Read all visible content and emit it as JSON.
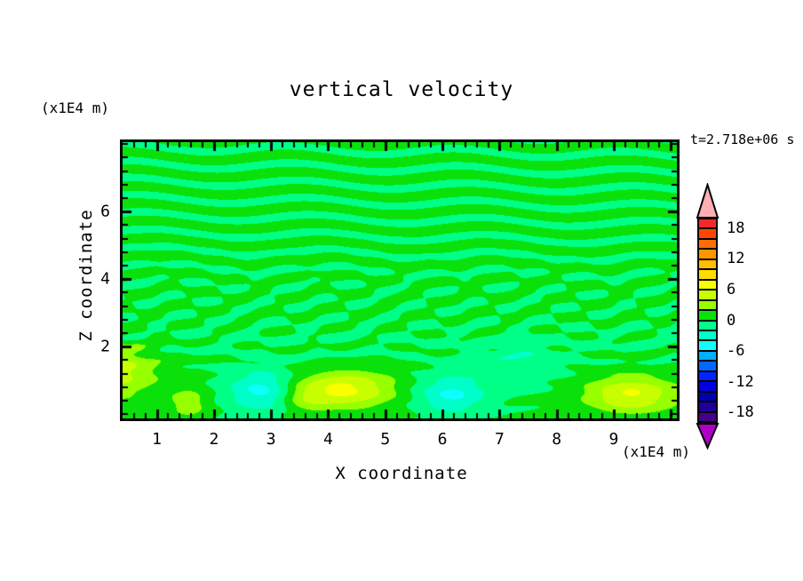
{
  "title": "vertical velocity",
  "time_stamp": "t=2.718e+06 s",
  "x_axis": {
    "title": "X coordinate",
    "unit": "(x1E4 m)",
    "major_tick_labels": [
      "1",
      "2",
      "3",
      "4",
      "5",
      "6",
      "7",
      "8",
      "9"
    ],
    "major_tick_values": [
      1,
      2,
      3,
      4,
      5,
      6,
      7,
      8,
      9
    ],
    "minor_step": 0.2,
    "range": [
      0.4,
      10.1
    ]
  },
  "y_axis": {
    "title": "Z coordinate",
    "unit": "(x1E4 m)",
    "major_tick_labels": [
      "6",
      "4",
      "2"
    ],
    "major_tick_values": [
      6,
      4,
      2
    ],
    "minor_step": 0.4,
    "range": [
      -0.23,
      8.06
    ]
  },
  "colorbar": {
    "labels": [
      "18",
      "12",
      "6",
      "0",
      "-6",
      "-12",
      "-18"
    ],
    "label_values": [
      18,
      12,
      6,
      0,
      -6,
      -12,
      -18
    ],
    "level_min": -20,
    "level_max": 20,
    "level_step": 2,
    "colors_bottom_to_top": [
      "#46008C",
      "#1E0096",
      "#0000AF",
      "#0000E1",
      "#0023FF",
      "#0069FF",
      "#00AFFF",
      "#0FFFFF",
      "#00FFC8",
      "#00FF87",
      "#0AE10A",
      "#96FF00",
      "#C8FF00",
      "#FAFF00",
      "#FFDC00",
      "#FFBE00",
      "#FF9600",
      "#FF6E00",
      "#FF4600",
      "#F52828"
    ],
    "over_color": "#FFAFB4",
    "under_color": "#AF00C8"
  },
  "chart_data": {
    "type": "heatmap",
    "title": "vertical velocity",
    "xlabel": "X coordinate (x1E4 m)",
    "ylabel": "Z coordinate (x1E4 m)",
    "annotation": "t=2.718e+06 s",
    "xlim": [
      0.4,
      10.1
    ],
    "ylim": [
      -0.23,
      8.06
    ],
    "contour_levels_step": 2,
    "value_range_shown": [
      -6,
      8
    ],
    "dominant_colors": {
      "positive_0_2": "#0AE10A",
      "negative_0_2": "#00FF87"
    },
    "field_model": {
      "stripe_wave": {
        "amp": 0.92,
        "kz": 12.4,
        "wiggle_amp": 1.35,
        "wiggle_kx": 2.15,
        "wiggle_kz": 0.5,
        "kx": 0.35,
        "phase": 0.4
      },
      "mid_band": {
        "center": 3.1,
        "width": 1.35,
        "stripe_reduction": 0.5
      },
      "diag_wave": {
        "amp": 0.9,
        "kx": 6.8,
        "kz": -8.5,
        "phase": 1.5
      },
      "diag_wave2": {
        "amp": 0.45,
        "kx": 5.2,
        "kz": 11.5,
        "phase": 0.8
      },
      "surface_band": {
        "amp": -0.38,
        "center": 2.15,
        "width": 0.55,
        "offset": 0.18
      },
      "bottom_damp": {
        "center": 1.55,
        "scale": 0.22,
        "floor": 0.25
      },
      "blobs": [
        {
          "x": 0.25,
          "z": 1.3,
          "sx": 0.75,
          "sz": 0.8,
          "amp": 4.8
        },
        {
          "x": 1.55,
          "z": 0.35,
          "sx": 0.35,
          "sz": 0.45,
          "amp": 3.0
        },
        {
          "x": 3.55,
          "z": 0.5,
          "sx": 0.45,
          "sz": 0.45,
          "amp": 2.6
        },
        {
          "x": 4.3,
          "z": 0.75,
          "sx": 0.85,
          "sz": 0.55,
          "amp": 6.3
        },
        {
          "x": 9.3,
          "z": 0.6,
          "sx": 0.8,
          "sz": 0.55,
          "amp": 6.0
        },
        {
          "x": 2.85,
          "z": 0.7,
          "sx": 0.6,
          "sz": 0.6,
          "amp": -5.0
        },
        {
          "x": 6.15,
          "z": 0.6,
          "sx": 0.6,
          "sz": 0.55,
          "amp": -4.6
        },
        {
          "x": 7.35,
          "z": 1.5,
          "sx": 0.8,
          "sz": 0.6,
          "amp": -1.8
        }
      ]
    }
  }
}
